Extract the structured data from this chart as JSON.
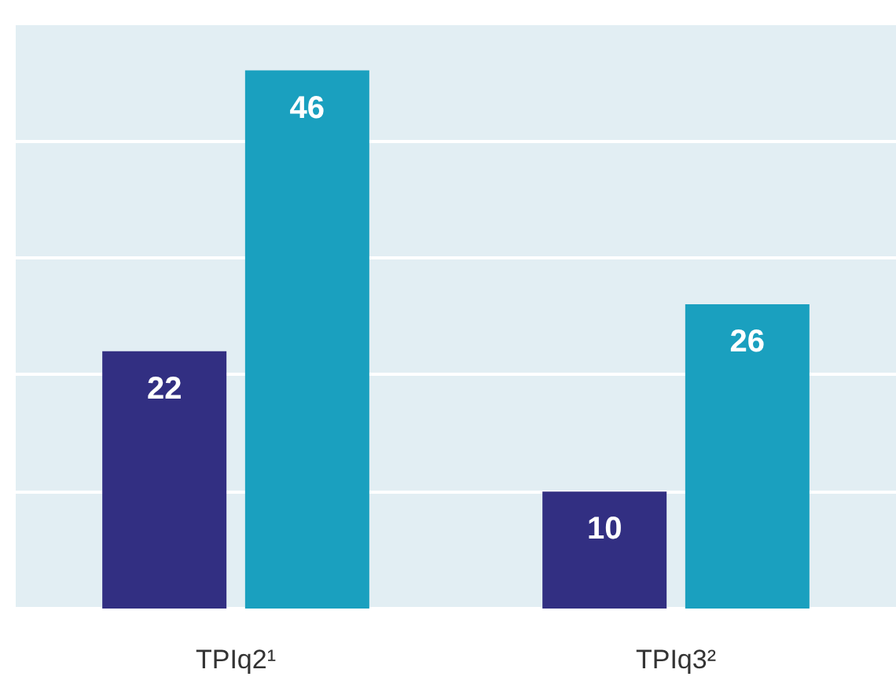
{
  "chart_data": {
    "type": "bar",
    "categories": [
      "TPIq2¹",
      "TPIq3²"
    ],
    "series": [
      {
        "color": "#322f82",
        "values": [
          22,
          10
        ]
      },
      {
        "color": "#1aa0bf",
        "values": [
          46,
          26
        ]
      }
    ],
    "ylim": [
      0,
      50
    ],
    "yticks": [
      0,
      10,
      20,
      30,
      40,
      50
    ],
    "grid": "y",
    "tick_labels": "x",
    "data_labels": true
  }
}
